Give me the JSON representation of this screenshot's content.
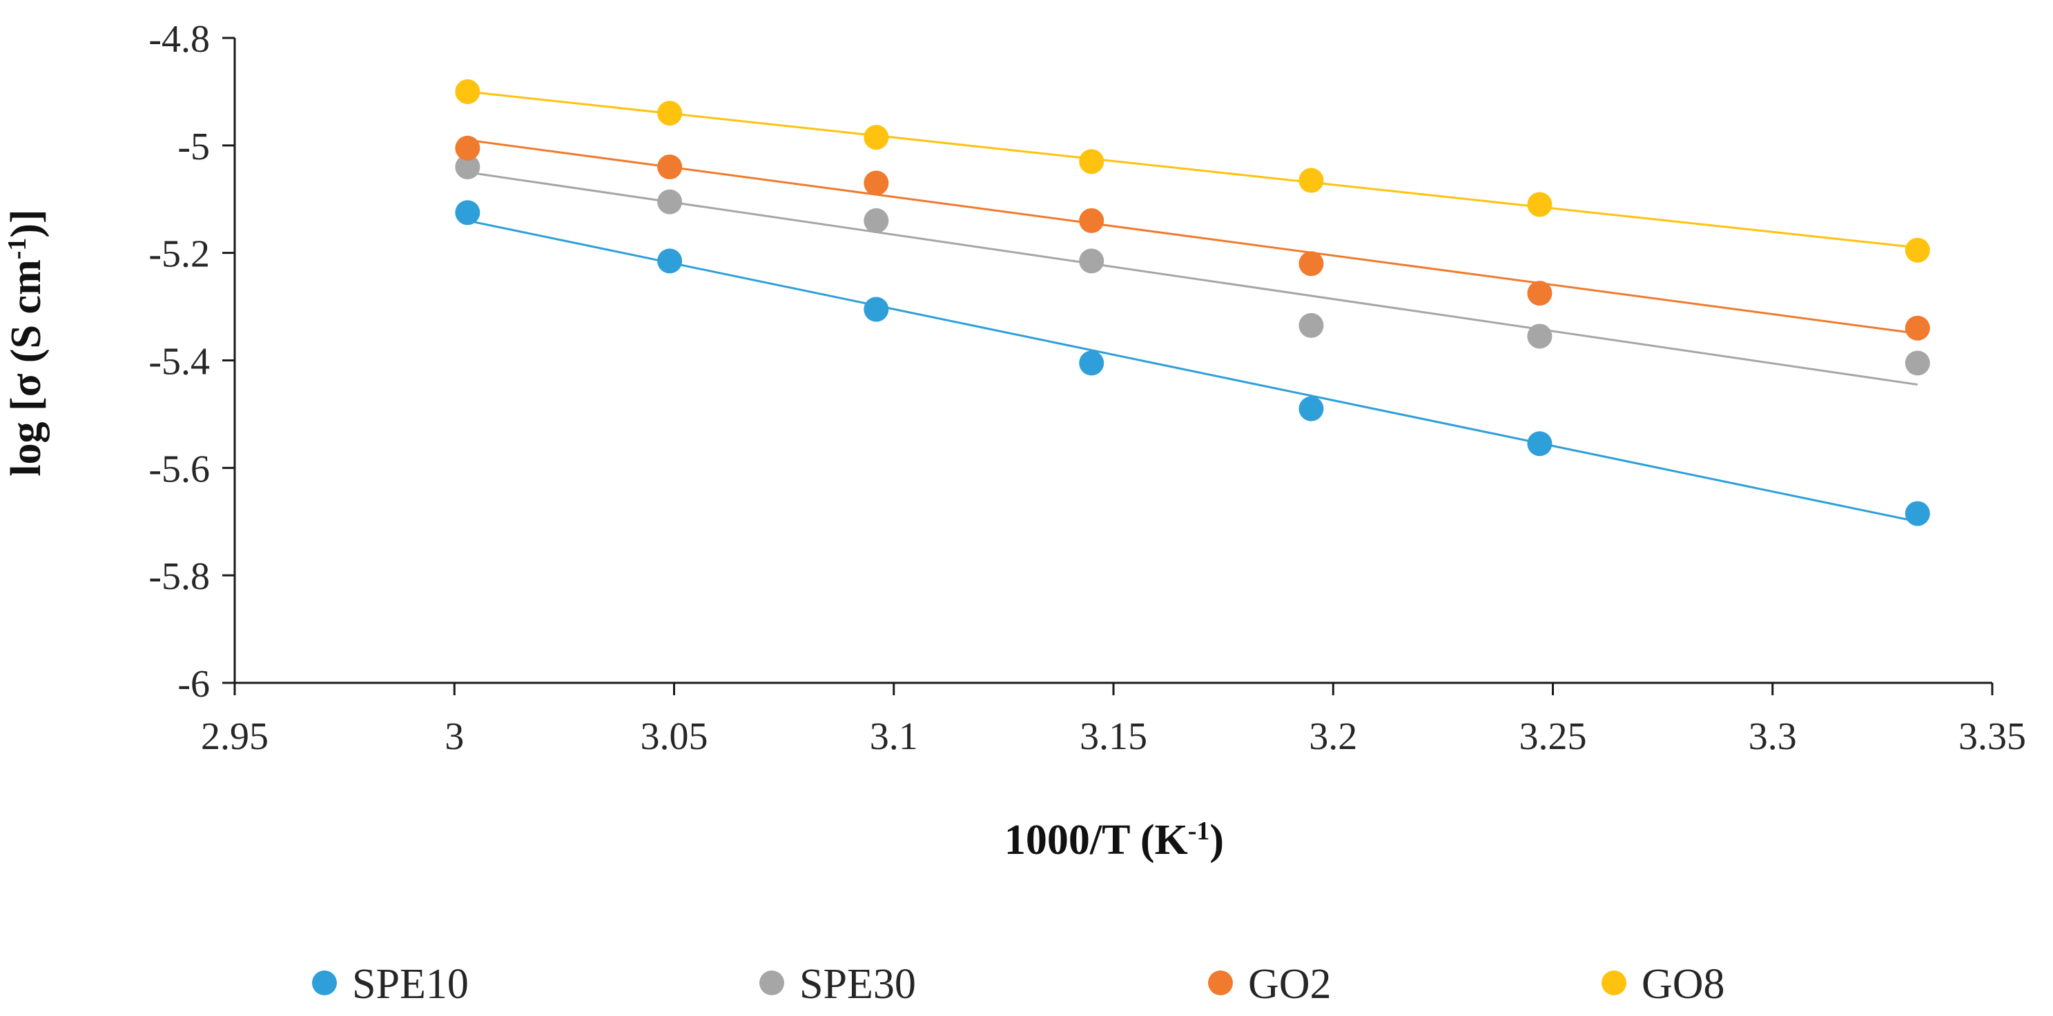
{
  "chart_data": {
    "type": "scatter",
    "title": "",
    "xlabel": "1000/T (K",
    "xlabel_sup": "-1",
    "xlabel_end": ")",
    "ylabel": "log [σ (S cm",
    "ylabel_sup": "-1",
    "ylabel_end": ")]",
    "xlim": [
      2.95,
      3.35
    ],
    "ylim": [
      -6,
      -4.8
    ],
    "x_ticks": [
      2.95,
      3.0,
      3.05,
      3.1,
      3.15,
      3.2,
      3.25,
      3.3,
      3.35
    ],
    "x_tick_labels": [
      "2.95",
      "3",
      "3.05",
      "3.1",
      "3.15",
      "3.2",
      "3.25",
      "3.3",
      "3.35"
    ],
    "y_ticks": [
      -4.8,
      -5.0,
      -5.2,
      -5.4,
      -5.6,
      -5.8,
      -6.0
    ],
    "y_tick_labels": [
      "-4.8",
      "-5",
      "-5.2",
      "-5.4",
      "-5.6",
      "-5.8",
      "-6"
    ],
    "grid": false,
    "legend_position": "bottom",
    "x": [
      3.003,
      3.049,
      3.096,
      3.145,
      3.195,
      3.247,
      3.333
    ],
    "series": [
      {
        "name": "SPE10",
        "color": "#2e9fd9",
        "values": [
          -5.125,
          -5.215,
          -5.305,
          -5.405,
          -5.49,
          -5.555,
          -5.685
        ],
        "trend": [
          -5.14,
          -5.7
        ]
      },
      {
        "name": "SPE30",
        "color": "#a6a6a6",
        "values": [
          -5.04,
          -5.105,
          -5.14,
          -5.215,
          -5.335,
          -5.355,
          -5.405
        ],
        "trend": [
          -5.05,
          -5.445
        ]
      },
      {
        "name": "GO2",
        "color": "#f07a2e",
        "values": [
          -5.005,
          -5.04,
          -5.07,
          -5.14,
          -5.22,
          -5.275,
          -5.34
        ],
        "trend": [
          -4.99,
          -5.35
        ]
      },
      {
        "name": "GO8",
        "color": "#ffc20e",
        "values": [
          -4.9,
          -4.94,
          -4.985,
          -5.03,
          -5.065,
          -5.11,
          -5.195
        ],
        "trend": [
          -4.9,
          -5.19
        ]
      }
    ]
  }
}
